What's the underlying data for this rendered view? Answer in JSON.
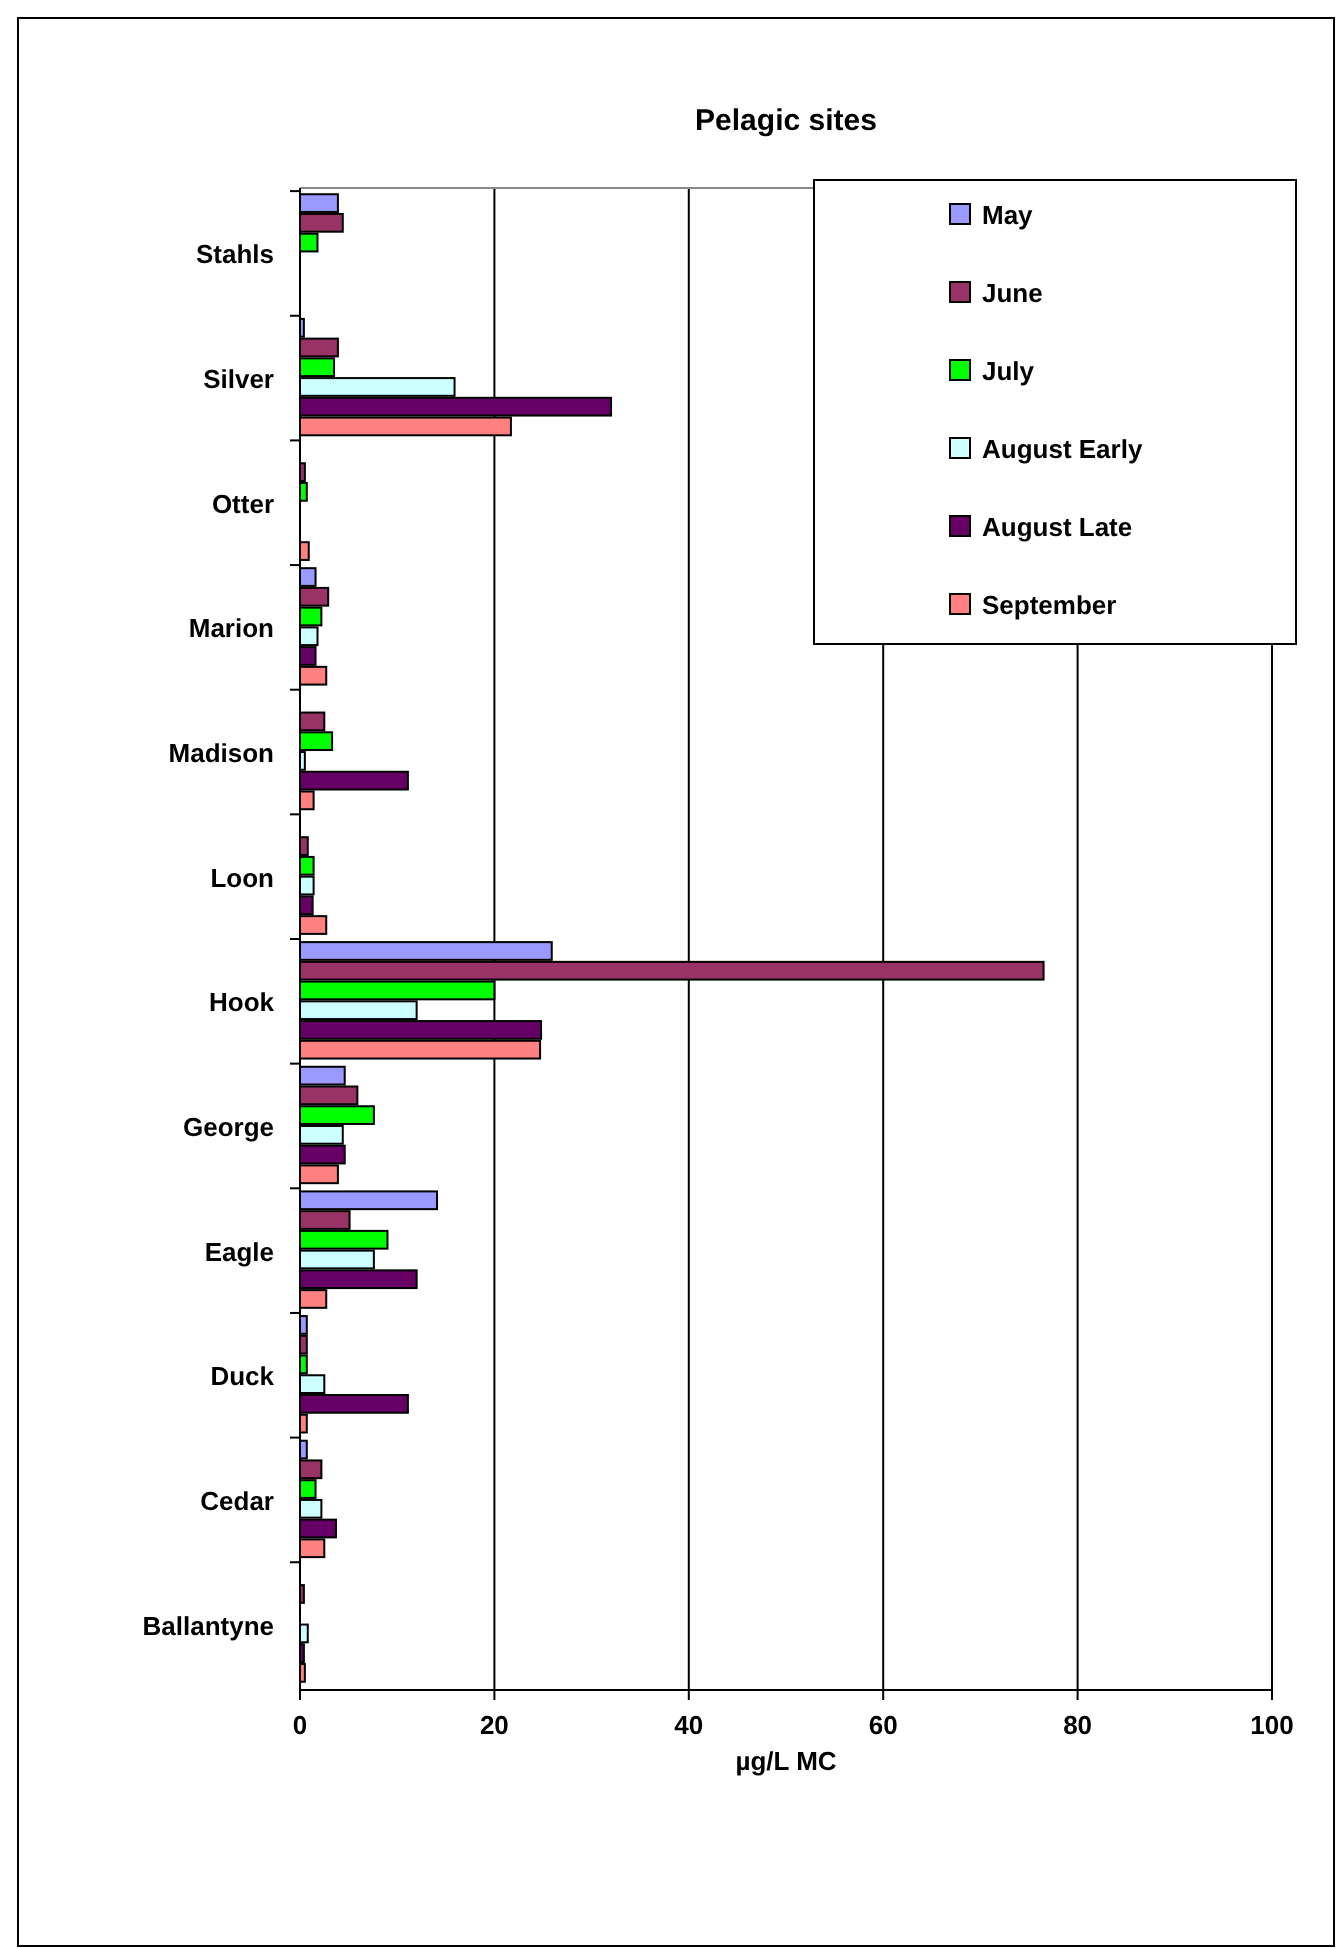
{
  "chart_data": {
    "type": "bar",
    "orientation": "horizontal",
    "title": "Pelagic sites",
    "xlabel": "µg/L MC",
    "categories": [
      "Stahls",
      "Silver",
      "Otter",
      "Marion",
      "Madison",
      "Loon",
      "Hook",
      "George",
      "Eagle",
      "Duck",
      "Cedar",
      "Ballantyne"
    ],
    "series": [
      {
        "name": "May",
        "color": "#9999ff",
        "values": [
          3.9,
          0.4,
          null,
          1.6,
          null,
          null,
          25.9,
          4.6,
          14.1,
          0.7,
          0.7,
          null
        ]
      },
      {
        "name": "June",
        "color": "#993366",
        "values": [
          4.4,
          3.9,
          0.5,
          2.9,
          2.5,
          0.8,
          76.5,
          5.9,
          5.1,
          0.7,
          2.2,
          0.4
        ]
      },
      {
        "name": "July",
        "color": "#00ff00",
        "values": [
          1.8,
          3.5,
          0.7,
          2.2,
          3.3,
          1.4,
          20,
          7.6,
          9,
          0.7,
          1.6,
          null
        ]
      },
      {
        "name": "August Early",
        "color": "#ccffff",
        "values": [
          null,
          15.9,
          null,
          1.8,
          0.5,
          1.4,
          12,
          4.4,
          7.6,
          2.5,
          2.2,
          0.8
        ]
      },
      {
        "name": "August Late",
        "color": "#660066",
        "values": [
          null,
          32,
          null,
          1.6,
          11.1,
          1.3,
          24.8,
          4.6,
          12,
          11.1,
          3.7,
          0.4
        ]
      },
      {
        "name": "September",
        "color": "#ff8080",
        "values": [
          null,
          21.7,
          0.9,
          2.7,
          1.4,
          2.7,
          24.7,
          3.9,
          2.7,
          0.7,
          2.5,
          0.5
        ]
      }
    ],
    "xlim": [
      0,
      100
    ],
    "xticks": [
      0,
      20,
      40,
      60,
      80,
      100
    ],
    "grid": "x",
    "legend": "top right"
  }
}
